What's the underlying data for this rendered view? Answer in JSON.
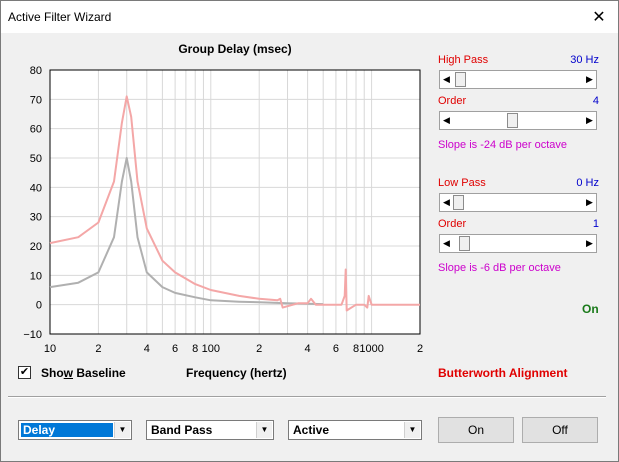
{
  "window": {
    "title": "Active Filter Wizard",
    "close_glyph": "✕"
  },
  "chart_data": {
    "type": "line",
    "title": "Group Delay (msec)",
    "xlabel": "Frequency (hertz)",
    "ylabel": "",
    "xscale": "log",
    "xlim": [
      10,
      2000
    ],
    "ylim": [
      -10,
      80
    ],
    "grid": true,
    "ytick_labels": [
      "80",
      "70",
      "60",
      "50",
      "40",
      "30",
      "20",
      "10",
      "0",
      "−10"
    ],
    "ytick_values": [
      80,
      70,
      60,
      50,
      40,
      30,
      20,
      10,
      0,
      -10
    ],
    "xtick_labels": [
      "10",
      "2",
      "4",
      "6",
      "8",
      "100",
      "2",
      "4",
      "6",
      "8",
      "1000",
      "2"
    ],
    "xtick_values": [
      10,
      20,
      40,
      60,
      80,
      100,
      200,
      400,
      600,
      800,
      1000,
      2000
    ],
    "series": [
      {
        "color": "#f4a7a7",
        "x": [
          10,
          15,
          20,
          25,
          28,
          30,
          32,
          35,
          40,
          50,
          60,
          80,
          100,
          150,
          200,
          260,
          270,
          280,
          350,
          400,
          420,
          450,
          600,
          650,
          680,
          690,
          700,
          800,
          900,
          940,
          960,
          1000,
          1500,
          2000
        ],
        "y": [
          21,
          23,
          28,
          42,
          62,
          71,
          64,
          42,
          26,
          15,
          11,
          7,
          5,
          3,
          2,
          1.5,
          2,
          -1,
          0.5,
          0.5,
          2,
          0,
          0,
          0,
          3,
          12,
          -2,
          0,
          0,
          -1,
          3,
          0,
          0,
          0
        ]
      },
      {
        "color": "#b0b0b0",
        "x": [
          10,
          15,
          20,
          25,
          28,
          30,
          32,
          35,
          40,
          50,
          60,
          80,
          100,
          150,
          200,
          300,
          500
        ],
        "y": [
          6,
          7.5,
          11,
          23,
          42,
          50,
          42,
          23,
          11,
          6,
          4,
          2.5,
          1.5,
          1,
          0.8,
          0.5,
          0.2
        ]
      }
    ]
  },
  "controls": {
    "high_pass": {
      "label": "High Pass",
      "value": "30 Hz",
      "position": 0.02
    },
    "high_order": {
      "label": "Order",
      "value": "4",
      "position": 0.45
    },
    "high_slope": "Slope is -24 dB per octave",
    "low_pass": {
      "label": "Low Pass",
      "value": "0 Hz",
      "position": 0.0
    },
    "low_order": {
      "label": "Order",
      "value": "1",
      "position": 0.05
    },
    "low_slope": "Slope is -6 dB per octave",
    "status": "On",
    "alignment": "Butterworth Alignment"
  },
  "baseline": {
    "checked": true,
    "check_glyph": "✔",
    "label_pre": "Sho",
    "label_ul": "w",
    "label_post": " Baseline"
  },
  "bottom": {
    "mode_select": "Delay",
    "filter_select": "Band Pass",
    "type_select": "Active",
    "on_button": "On",
    "off_button": "Off"
  },
  "colors": {
    "accent_red": "#e00000",
    "accent_blue": "#0000cc",
    "slope_magenta": "#cc00cc",
    "status_green": "#1a7a1a",
    "selection_blue": "#0078d7"
  }
}
